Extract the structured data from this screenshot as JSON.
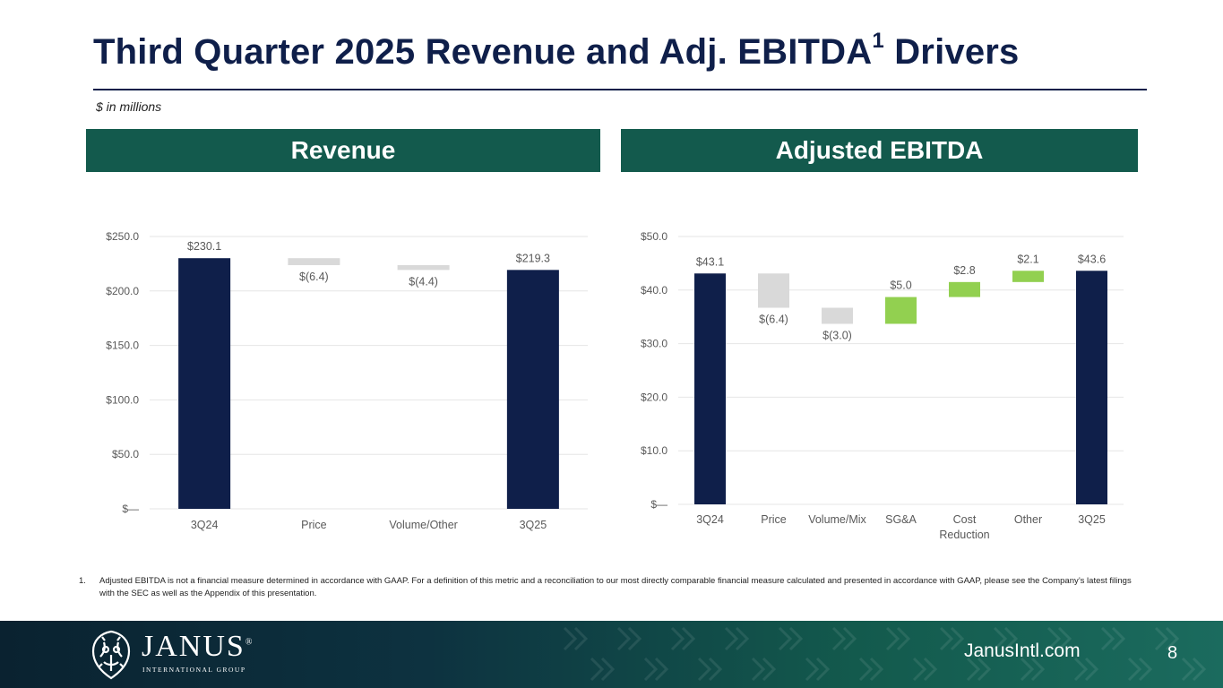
{
  "page": {
    "title": "Third Quarter 2025 Revenue and Adj. EBITDA",
    "title_sup": "1",
    "title_tail": " Drivers",
    "units": "$ in millions"
  },
  "panels": {
    "revenue_header": "Revenue",
    "ebitda_header": "Adjusted EBITDA"
  },
  "colors": {
    "total": "#0f1f4a",
    "decrease": "#d9d9d9",
    "increase": "#92d050",
    "header": "#135a4d",
    "grid": "#e6e6e6",
    "axis_text": "#595959"
  },
  "chart_data": [
    {
      "type": "bar",
      "subtype": "waterfall",
      "title": "Revenue",
      "categories": [
        "3Q24",
        "Price",
        "Volume/Other",
        "3Q25"
      ],
      "values": [
        230.1,
        -6.4,
        -4.4,
        219.3
      ],
      "measures": [
        "total",
        "relative",
        "relative",
        "total"
      ],
      "data_labels": [
        "$230.1",
        "$(6.4)",
        "$(4.4)",
        "$219.3"
      ],
      "ylim": [
        0,
        250
      ],
      "yticks": [
        0,
        50,
        100,
        150,
        200,
        250
      ],
      "ytick_labels": [
        "$—",
        "$50.0",
        "$100.0",
        "$150.0",
        "$200.0",
        "$250.0"
      ],
      "xlabel": "",
      "ylabel": "",
      "grid": true,
      "legend": "none"
    },
    {
      "type": "bar",
      "subtype": "waterfall",
      "title": "Adjusted EBITDA",
      "categories": [
        "3Q24",
        "Price",
        "Volume/Mix",
        "SG&A",
        "Cost Reduction",
        "Other",
        "3Q25"
      ],
      "values": [
        43.1,
        -6.4,
        -3.0,
        5.0,
        2.8,
        2.1,
        43.6
      ],
      "measures": [
        "total",
        "relative",
        "relative",
        "relative",
        "relative",
        "relative",
        "total"
      ],
      "data_labels": [
        "$43.1",
        "$(6.4)",
        "$(3.0)",
        "$5.0",
        "$2.8",
        "$2.1",
        "$43.6"
      ],
      "ylim": [
        0,
        50
      ],
      "yticks": [
        0,
        10,
        20,
        30,
        40,
        50
      ],
      "ytick_labels": [
        "$—",
        "$10.0",
        "$20.0",
        "$30.0",
        "$40.0",
        "$50.0"
      ],
      "xlabel": "",
      "ylabel": "",
      "grid": true,
      "legend": "none"
    }
  ],
  "footnote": {
    "number": "1.",
    "text": "Adjusted EBITDA is not a financial measure determined in accordance with GAAP. For a definition of this metric and a reconciliation to our most directly comparable financial measure calculated and presented in accordance with GAAP, please see the Company’s latest filings with the SEC as well as the Appendix of this presentation."
  },
  "footer": {
    "logo_icon": "janus-crest-icon",
    "brand": "JANUS",
    "brand_sub": "INTERNATIONAL GROUP",
    "website": "JanusIntl.com",
    "page_number": "8"
  }
}
